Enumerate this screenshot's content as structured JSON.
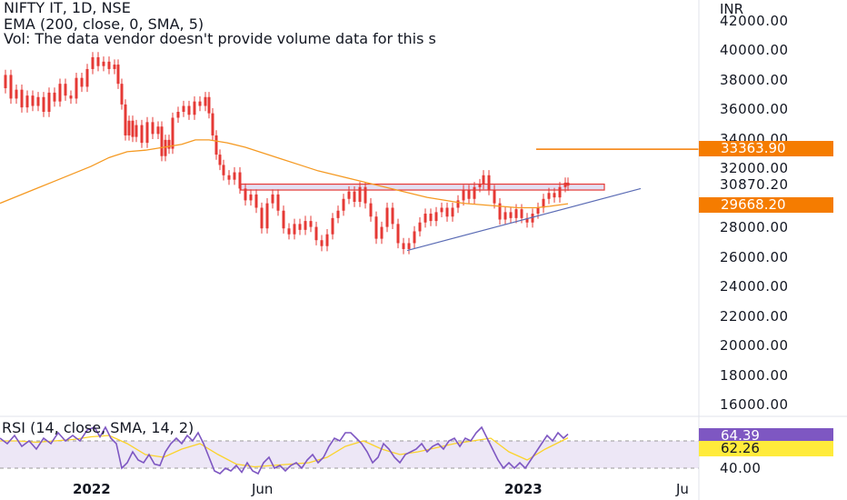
{
  "header": {
    "symbol_line": "NIFTY IT, 1D, NSE",
    "ema_line": "EMA (200, close, 0, SMA, 5)",
    "vol_line": "Vol: The data vendor doesn't provide volume data for this s"
  },
  "rsi_panel": {
    "legend": "RSI (14, close, SMA, 14, 2)",
    "rsi_value": "64.39",
    "rsi_sma_value": "62.26",
    "axis_label": "40.00"
  },
  "price_axis": {
    "currency": "INR",
    "labels": [
      "42000.00",
      "40000.00",
      "38000.00",
      "36000.00",
      "34000.00",
      "32000.00",
      "30870.20",
      "28000.00",
      "26000.00",
      "24000.00",
      "22000.00",
      "20000.00",
      "18000.00",
      "16000.00"
    ],
    "tag_last_price": "29668.20",
    "tag_line_level": "33363.90"
  },
  "time_axis": {
    "labels": [
      "2022",
      "Jun",
      "2023",
      "Ju"
    ]
  },
  "colors": {
    "candle": "#e53935",
    "ema": "#f59a23",
    "trendline": "#5b6cb5",
    "zone_fill": "#e3e0f3",
    "zone_border": "#e53935",
    "resistance_line": "#f57c00",
    "rsi": "#7e57c2",
    "rsi_sma": "#fbd32a",
    "rsi_band": "#ede7f6"
  },
  "chart_data": {
    "type": "line",
    "xlabel": "",
    "ylabel": "",
    "ylim": [
      15000,
      43000
    ],
    "x_ticks": [
      "2022",
      "Jun",
      "2023",
      "Ju"
    ],
    "y_ticks": [
      16000,
      18000,
      20000,
      22000,
      24000,
      26000,
      28000,
      32000,
      34000,
      36000,
      38000,
      40000,
      42000
    ],
    "series": [
      {
        "values": [
          [
            0,
            37500
          ],
          [
            6,
            38400
          ],
          [
            12,
            36800
          ],
          [
            18,
            37400
          ],
          [
            24,
            36200
          ],
          [
            30,
            37000
          ],
          [
            36,
            36300
          ],
          [
            42,
            36900
          ],
          [
            48,
            35900
          ],
          [
            54,
            37200
          ],
          [
            60,
            36600
          ],
          [
            66,
            37800
          ],
          [
            72,
            37000
          ],
          [
            78,
            36800
          ],
          [
            84,
            38200
          ],
          [
            90,
            37600
          ],
          [
            96,
            38800
          ],
          [
            102,
            39600
          ],
          [
            108,
            39000
          ],
          [
            114,
            39300
          ],
          [
            120,
            38800
          ],
          [
            126,
            39100
          ],
          [
            130,
            37800
          ],
          [
            134,
            36400
          ],
          [
            138,
            34300
          ],
          [
            142,
            35300
          ],
          [
            146,
            34200
          ],
          [
            150,
            35000
          ],
          [
            156,
            33800
          ],
          [
            162,
            35200
          ],
          [
            168,
            34400
          ],
          [
            174,
            34900
          ],
          [
            178,
            32900
          ],
          [
            182,
            34000
          ],
          [
            186,
            33400
          ],
          [
            190,
            35500
          ],
          [
            196,
            35900
          ],
          [
            202,
            36300
          ],
          [
            208,
            35700
          ],
          [
            214,
            36600
          ],
          [
            220,
            36300
          ],
          [
            226,
            36900
          ],
          [
            230,
            35800
          ],
          [
            234,
            34300
          ],
          [
            238,
            33000
          ],
          [
            242,
            32300
          ],
          [
            246,
            31600
          ],
          [
            252,
            31300
          ],
          [
            258,
            31800
          ],
          [
            264,
            30700
          ],
          [
            270,
            29900
          ],
          [
            276,
            30300
          ],
          [
            282,
            29400
          ],
          [
            288,
            28000
          ],
          [
            294,
            29700
          ],
          [
            300,
            30300
          ],
          [
            306,
            29200
          ],
          [
            312,
            28000
          ],
          [
            318,
            27600
          ],
          [
            324,
            28300
          ],
          [
            330,
            27900
          ],
          [
            336,
            28500
          ],
          [
            342,
            28100
          ],
          [
            348,
            27200
          ],
          [
            354,
            26800
          ],
          [
            360,
            27600
          ],
          [
            366,
            28700
          ],
          [
            372,
            29200
          ],
          [
            378,
            30000
          ],
          [
            384,
            30500
          ],
          [
            390,
            29800
          ],
          [
            396,
            30800
          ],
          [
            402,
            29700
          ],
          [
            408,
            28800
          ],
          [
            414,
            27300
          ],
          [
            420,
            28100
          ],
          [
            426,
            29400
          ],
          [
            432,
            28300
          ],
          [
            438,
            27000
          ],
          [
            444,
            26600
          ],
          [
            450,
            27000
          ],
          [
            456,
            27800
          ],
          [
            462,
            28400
          ],
          [
            468,
            29000
          ],
          [
            474,
            28500
          ],
          [
            480,
            29100
          ],
          [
            486,
            29400
          ],
          [
            492,
            28800
          ],
          [
            498,
            29400
          ],
          [
            504,
            29900
          ],
          [
            510,
            30600
          ],
          [
            516,
            30000
          ],
          [
            522,
            30800
          ],
          [
            528,
            31000
          ],
          [
            532,
            31600
          ],
          [
            538,
            30600
          ],
          [
            544,
            29700
          ],
          [
            550,
            28600
          ],
          [
            556,
            29100
          ],
          [
            562,
            28700
          ],
          [
            568,
            29300
          ],
          [
            574,
            28700
          ],
          [
            580,
            28400
          ],
          [
            586,
            29000
          ],
          [
            592,
            29400
          ],
          [
            598,
            30000
          ],
          [
            604,
            30400
          ],
          [
            610,
            30100
          ],
          [
            616,
            30800
          ],
          [
            622,
            31100
          ],
          [
            625,
            30900
          ]
        ]
      },
      {
        "values": [
          [
            0,
            29700
          ],
          [
            20,
            30200
          ],
          [
            40,
            30700
          ],
          [
            60,
            31200
          ],
          [
            80,
            31700
          ],
          [
            100,
            32200
          ],
          [
            120,
            32800
          ],
          [
            140,
            33200
          ],
          [
            160,
            33300
          ],
          [
            180,
            33500
          ],
          [
            200,
            33700
          ],
          [
            215,
            34000
          ],
          [
            230,
            34000
          ],
          [
            250,
            33800
          ],
          [
            270,
            33500
          ],
          [
            290,
            33100
          ],
          [
            310,
            32700
          ],
          [
            330,
            32300
          ],
          [
            350,
            31900
          ],
          [
            370,
            31600
          ],
          [
            390,
            31300
          ],
          [
            410,
            31000
          ],
          [
            430,
            30700
          ],
          [
            450,
            30400
          ],
          [
            470,
            30100
          ],
          [
            490,
            29900
          ],
          [
            510,
            29700
          ],
          [
            530,
            29600
          ],
          [
            550,
            29500
          ],
          [
            570,
            29400
          ],
          [
            590,
            29400
          ],
          [
            605,
            29500
          ],
          [
            625,
            29668
          ]
        ]
      }
    ],
    "annotations": {
      "resistance_zone": {
        "y_top": 31000,
        "y_bottom": 30600,
        "x_start": 265,
        "x_end": 665
      },
      "rising_trendline": {
        "start": [
          448,
          26500
        ],
        "end": [
          705,
          30700
        ]
      },
      "horizontal_level": 33363.9
    },
    "rsi": {
      "ylim": [
        35,
        75
      ],
      "band": [
        40,
        60
      ],
      "values": [
        [
          0,
          62
        ],
        [
          8,
          58
        ],
        [
          16,
          64
        ],
        [
          24,
          56
        ],
        [
          32,
          60
        ],
        [
          40,
          54
        ],
        [
          48,
          62
        ],
        [
          56,
          58
        ],
        [
          64,
          66
        ],
        [
          72,
          60
        ],
        [
          80,
          64
        ],
        [
          88,
          60
        ],
        [
          96,
          68
        ],
        [
          104,
          70
        ],
        [
          110,
          63
        ],
        [
          116,
          70
        ],
        [
          122,
          62
        ],
        [
          128,
          58
        ],
        [
          134,
          40
        ],
        [
          140,
          44
        ],
        [
          146,
          52
        ],
        [
          152,
          46
        ],
        [
          158,
          44
        ],
        [
          164,
          50
        ],
        [
          170,
          43
        ],
        [
          176,
          42
        ],
        [
          182,
          52
        ],
        [
          188,
          58
        ],
        [
          194,
          62
        ],
        [
          200,
          58
        ],
        [
          206,
          64
        ],
        [
          212,
          60
        ],
        [
          218,
          66
        ],
        [
          224,
          58
        ],
        [
          230,
          48
        ],
        [
          236,
          38
        ],
        [
          242,
          36
        ],
        [
          248,
          40
        ],
        [
          254,
          38
        ],
        [
          260,
          42
        ],
        [
          266,
          37
        ],
        [
          272,
          44
        ],
        [
          278,
          38
        ],
        [
          284,
          36
        ],
        [
          290,
          44
        ],
        [
          296,
          48
        ],
        [
          302,
          40
        ],
        [
          308,
          42
        ],
        [
          314,
          38
        ],
        [
          320,
          42
        ],
        [
          326,
          44
        ],
        [
          332,
          40
        ],
        [
          338,
          46
        ],
        [
          344,
          50
        ],
        [
          350,
          44
        ],
        [
          356,
          48
        ],
        [
          362,
          56
        ],
        [
          368,
          62
        ],
        [
          374,
          60
        ],
        [
          380,
          66
        ],
        [
          386,
          66
        ],
        [
          392,
          62
        ],
        [
          398,
          58
        ],
        [
          404,
          52
        ],
        [
          410,
          44
        ],
        [
          416,
          48
        ],
        [
          422,
          58
        ],
        [
          428,
          54
        ],
        [
          434,
          48
        ],
        [
          440,
          44
        ],
        [
          446,
          50
        ],
        [
          452,
          52
        ],
        [
          458,
          54
        ],
        [
          464,
          58
        ],
        [
          470,
          52
        ],
        [
          476,
          56
        ],
        [
          482,
          58
        ],
        [
          488,
          54
        ],
        [
          494,
          60
        ],
        [
          500,
          62
        ],
        [
          506,
          56
        ],
        [
          512,
          62
        ],
        [
          518,
          60
        ],
        [
          524,
          66
        ],
        [
          530,
          70
        ],
        [
          536,
          62
        ],
        [
          542,
          54
        ],
        [
          548,
          46
        ],
        [
          554,
          40
        ],
        [
          560,
          44
        ],
        [
          566,
          40
        ],
        [
          572,
          44
        ],
        [
          578,
          40
        ],
        [
          584,
          46
        ],
        [
          590,
          52
        ],
        [
          596,
          58
        ],
        [
          602,
          64
        ],
        [
          608,
          60
        ],
        [
          614,
          66
        ],
        [
          620,
          62
        ],
        [
          625,
          65
        ]
      ],
      "sma_values": [
        [
          0,
          60
        ],
        [
          20,
          60
        ],
        [
          40,
          59
        ],
        [
          60,
          60
        ],
        [
          80,
          61
        ],
        [
          100,
          63
        ],
        [
          120,
          64
        ],
        [
          140,
          58
        ],
        [
          160,
          50
        ],
        [
          180,
          48
        ],
        [
          200,
          54
        ],
        [
          220,
          58
        ],
        [
          240,
          50
        ],
        [
          260,
          43
        ],
        [
          280,
          41
        ],
        [
          300,
          42
        ],
        [
          320,
          43
        ],
        [
          340,
          44
        ],
        [
          360,
          48
        ],
        [
          380,
          56
        ],
        [
          400,
          60
        ],
        [
          420,
          54
        ],
        [
          440,
          50
        ],
        [
          460,
          52
        ],
        [
          480,
          55
        ],
        [
          500,
          58
        ],
        [
          520,
          60
        ],
        [
          540,
          62
        ],
        [
          560,
          52
        ],
        [
          580,
          46
        ],
        [
          600,
          54
        ],
        [
          625,
          62.26
        ]
      ]
    }
  }
}
